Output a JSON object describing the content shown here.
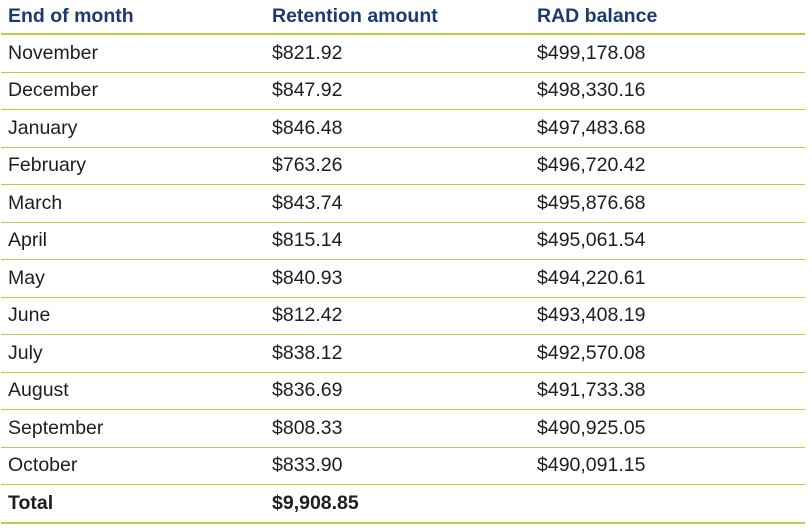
{
  "table": {
    "headers": [
      "End of month",
      "Retention amount",
      "RAD balance"
    ],
    "rows": [
      [
        "November",
        "$821.92",
        "$499,178.08"
      ],
      [
        "December",
        "$847.92",
        "$498,330.16"
      ],
      [
        "January",
        "$846.48",
        "$497,483.68"
      ],
      [
        "February",
        "$763.26",
        "$496,720.42"
      ],
      [
        "March",
        "$843.74",
        "$495,876.68"
      ],
      [
        "April",
        "$815.14",
        "$495,061.54"
      ],
      [
        "May",
        "$840.93",
        "$494,220.61"
      ],
      [
        "June",
        "$812.42",
        "$493,408.19"
      ],
      [
        "July",
        "$838.12",
        "$492,570.08"
      ],
      [
        "August",
        "$836.69",
        "$491,733.38"
      ],
      [
        "September",
        "$808.33",
        "$490,925.05"
      ],
      [
        "October",
        "$833.90",
        "$490,091.15"
      ]
    ],
    "total": [
      "Total",
      "$9,908.85",
      ""
    ]
  },
  "colors": {
    "header_text": "#1c3a6e",
    "rule": "#c5c83a"
  }
}
